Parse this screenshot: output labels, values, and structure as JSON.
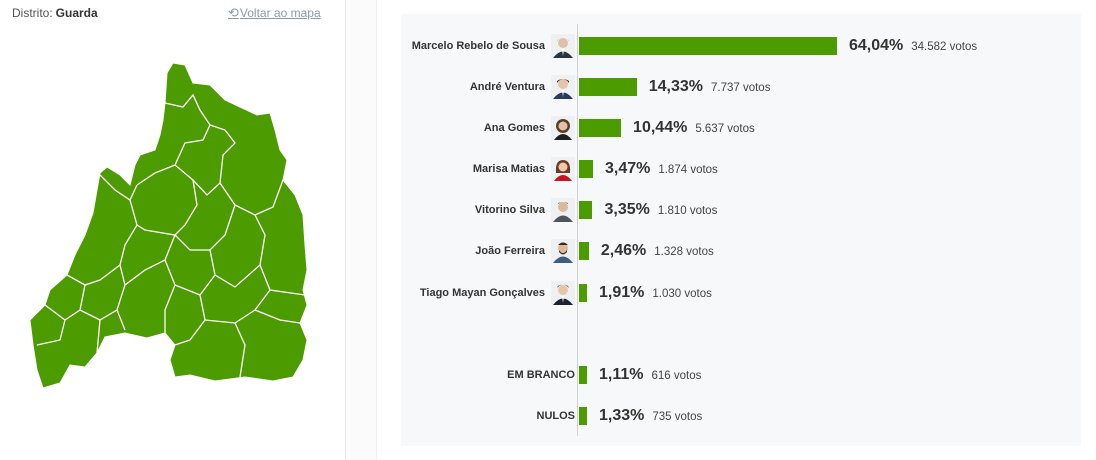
{
  "header": {
    "district_label": "Distrito:",
    "district_name": "Guarda",
    "back_link": "Voltar ao mapa"
  },
  "colors": {
    "bar": "#4c9b00",
    "map_fill": "#4c9b00",
    "map_borders": "#ffffff",
    "link": "#8a9bb0"
  },
  "chart_data": {
    "type": "bar",
    "orientation": "horizontal",
    "categories": [
      "Marcelo Rebelo de Sousa",
      "André Ventura",
      "Ana Gomes",
      "Marisa Matias",
      "Vitorino Silva",
      "João Ferreira",
      "Tiago Mayan Gonçalves",
      "EM BRANCO",
      "NULOS"
    ],
    "values": [
      64.04,
      14.33,
      10.44,
      3.47,
      3.35,
      2.46,
      1.91,
      1.11,
      1.33
    ],
    "pct_labels": [
      "64,04%",
      "14,33%",
      "10,44%",
      "3,47%",
      "3,35%",
      "2,46%",
      "1,91%",
      "1,11%",
      "1,33%"
    ],
    "votes_labels": [
      "34.582 votos",
      "7.737 votos",
      "5.637 votos",
      "1.874 votos",
      "1.810 votos",
      "1.328 votos",
      "1.030 votos",
      "616 votos",
      "735 votos"
    ],
    "has_avatar": [
      true,
      true,
      true,
      true,
      true,
      true,
      true,
      false,
      false
    ],
    "xlim": [
      0,
      64.04
    ],
    "grid": false,
    "legend": "none"
  }
}
